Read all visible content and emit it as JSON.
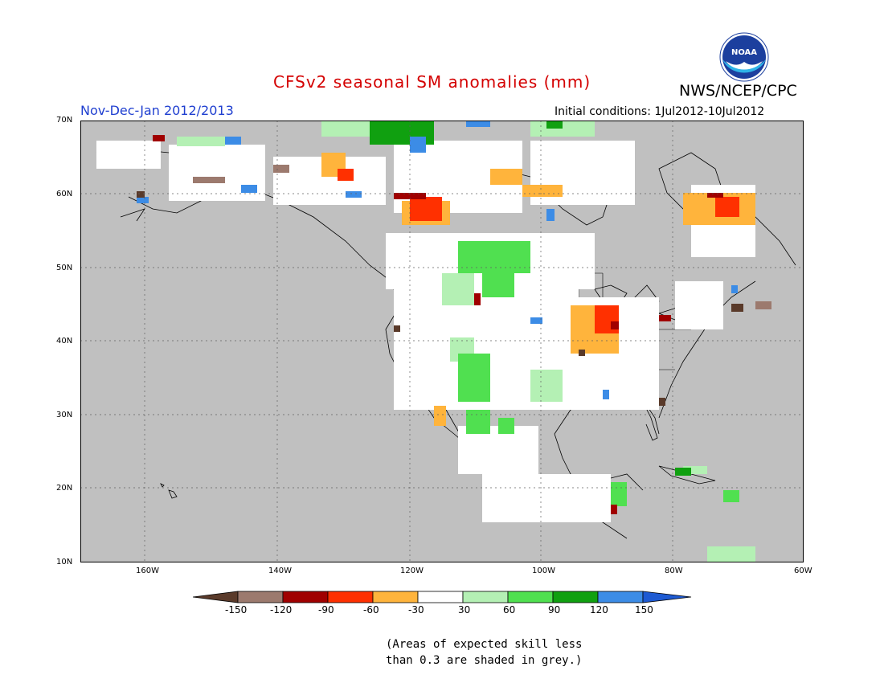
{
  "header": {
    "title": "CFSv2 seasonal SM anomalies (mm)",
    "agency": "NWS/NCEP/CPC",
    "season": "Nov-Dec-Jan 2012/2013",
    "initial_conditions": "Initial conditions: 1Jul2012-10Jul2012",
    "logo_text": "NOAA"
  },
  "map": {
    "lat_labels": [
      "70N",
      "60N",
      "50N",
      "40N",
      "30N",
      "20N",
      "10N"
    ],
    "lon_labels": [
      "160W",
      "140W",
      "120W",
      "100W",
      "80W",
      "60W"
    ],
    "unit": "mm",
    "grid": "dotted",
    "low_skill_shading": "grey"
  },
  "legend": {
    "ticks": [
      "-150",
      "-120",
      "-90",
      "-60",
      "-30",
      "30",
      "60",
      "90",
      "120",
      "150"
    ],
    "colors": [
      "#5a3a2a",
      "#9c7a6e",
      "#a00000",
      "#ff3000",
      "#ffb43c",
      "#ffffff",
      "#b4f0b4",
      "#50e050",
      "#10a010",
      "#3c8ce6",
      "#1e5ad2"
    ]
  },
  "note": {
    "line1": "(Areas of expected skill less",
    "line2": "than 0.3 are shaded in grey.)"
  }
}
